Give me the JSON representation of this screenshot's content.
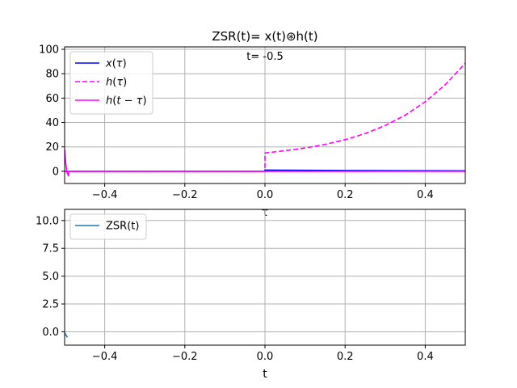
{
  "figure": {
    "title": "ZSR(t)= x(t)⊛h(t)",
    "annotation": "t= -0.5"
  },
  "chart_data": [
    {
      "type": "line",
      "name": "top-panel",
      "xlim": [
        -0.5,
        0.5
      ],
      "ylim": [
        -10,
        102
      ],
      "xlabel": "τ",
      "ylabel": "",
      "grid": true,
      "legend_placement": "top-left",
      "xticks": [
        -0.4,
        -0.2,
        0.0,
        0.2,
        0.4
      ],
      "xtick_labels": [
        "−0.4",
        "−0.2",
        "0.0",
        "0.2",
        "0.4"
      ],
      "yticks": [
        0,
        20,
        40,
        60,
        80,
        100
      ],
      "ytick_labels": [
        "0",
        "20",
        "40",
        "60",
        "80",
        "100"
      ],
      "series": [
        {
          "name": "x(τ)",
          "color": "#0000ff",
          "dash": "solid",
          "x": [
            -0.5,
            0.0,
            0.0,
            0.1,
            0.2,
            0.3,
            0.4,
            0.5
          ],
          "y": [
            0,
            0,
            1.0,
            0.82,
            0.67,
            0.55,
            0.45,
            0.37
          ]
        },
        {
          "name": "h(τ)",
          "color": "#ff00ff",
          "dash": "dashed",
          "x": [
            -0.5,
            0.0,
            0.0,
            0.05,
            0.1,
            0.15,
            0.2,
            0.25,
            0.3,
            0.35,
            0.4,
            0.45,
            0.5
          ],
          "y": [
            0,
            0,
            15.0,
            16.9,
            19.1,
            22.0,
            25.9,
            30.9,
            37.5,
            46.0,
            57.0,
            71.0,
            88.6
          ]
        },
        {
          "name": "h(t − τ)",
          "color": "#ff00ff",
          "dash": "solid",
          "x": [
            -0.5,
            -0.497,
            -0.494,
            -0.49,
            -0.49,
            0.5
          ],
          "y": [
            18,
            6,
            -1,
            -4,
            0,
            0
          ]
        }
      ]
    },
    {
      "type": "line",
      "name": "bottom-panel",
      "xlim": [
        -0.5,
        0.5
      ],
      "ylim": [
        -1.2,
        11.0
      ],
      "xlabel": "t",
      "ylabel": "",
      "grid": true,
      "legend_placement": "top-left",
      "xticks": [
        -0.4,
        -0.2,
        0.0,
        0.2,
        0.4
      ],
      "xtick_labels": [
        "−0.4",
        "−0.2",
        "0.0",
        "0.2",
        "0.4"
      ],
      "yticks": [
        0.0,
        2.5,
        5.0,
        7.5,
        10.0
      ],
      "ytick_labels": [
        "0.0",
        "2.5",
        "5.0",
        "7.5",
        "10.0"
      ],
      "series": [
        {
          "name": "ZSR(t)",
          "color": "#1f77b4",
          "dash": "solid",
          "x": [
            -0.5,
            -0.493
          ],
          "y": [
            -0.1,
            -0.5
          ]
        }
      ]
    }
  ]
}
